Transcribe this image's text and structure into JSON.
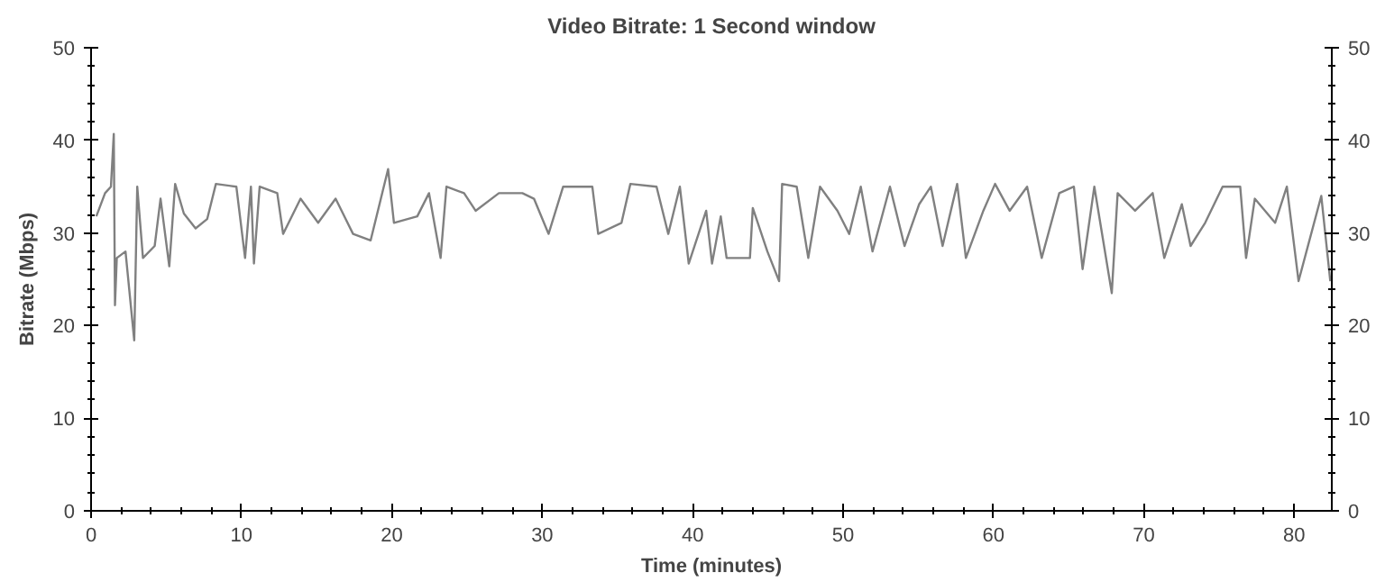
{
  "chart_data": {
    "type": "line",
    "title": "Video Bitrate: 1 Second window",
    "xlabel": "Time (minutes)",
    "ylabel": "Bitrate (Mbps)",
    "xlim": [
      0,
      82.5
    ],
    "xticks": [
      0,
      10,
      20,
      30,
      40,
      50,
      60,
      70,
      80
    ],
    "ylim": [
      0,
      50
    ],
    "yticks": [
      0,
      10,
      20,
      30,
      40,
      50
    ],
    "y2lim": [
      0,
      50
    ],
    "y2ticks": [
      0,
      10,
      20,
      30,
      40,
      50
    ],
    "grid": false,
    "marker": "none",
    "line_style": "solid",
    "series": [
      {
        "color": "#808080",
        "x": [
          0.35,
          0.93,
          1.32,
          1.51,
          1.59,
          1.71,
          2.29,
          2.87,
          3.07,
          3.45,
          4.23,
          4.62,
          5.2,
          5.59,
          6.17,
          6.95,
          7.72,
          8.3,
          9.66,
          10.24,
          10.63,
          10.83,
          11.21,
          12.38,
          12.77,
          13.93,
          15.1,
          16.26,
          17.42,
          18.59,
          19.75,
          20.14,
          21.69,
          22.47,
          23.24,
          23.63,
          24.8,
          25.57,
          27.12,
          28.68,
          29.45,
          30.42,
          31.39,
          33.33,
          33.72,
          35.27,
          35.86,
          37.6,
          38.38,
          39.15,
          39.74,
          40.9,
          41.29,
          41.87,
          42.26,
          43.81,
          44.0,
          44.97,
          45.75,
          45.95,
          46.92,
          47.69,
          48.47,
          49.63,
          50.41,
          51.18,
          51.96,
          53.12,
          54.09,
          55.06,
          55.84,
          56.62,
          57.59,
          58.17,
          59.33,
          60.11,
          61.08,
          62.24,
          63.21,
          64.38,
          65.35,
          65.93,
          66.71,
          67.87,
          68.26,
          69.42,
          70.59,
          71.36,
          72.53,
          73.11,
          74.08,
          75.24,
          76.41,
          76.8,
          77.38,
          78.73,
          79.51,
          80.29,
          81.8,
          82.4
        ],
        "values": [
          31.8,
          34.3,
          35.0,
          40.7,
          22.2,
          27.3,
          28.0,
          18.4,
          35.0,
          27.3,
          28.6,
          33.7,
          26.4,
          35.3,
          32.1,
          30.5,
          31.5,
          35.3,
          35.0,
          27.3,
          35.0,
          26.7,
          35.0,
          34.3,
          29.9,
          33.7,
          31.1,
          33.7,
          29.9,
          29.2,
          36.9,
          31.1,
          31.8,
          34.3,
          27.3,
          35.0,
          34.3,
          32.4,
          34.3,
          34.3,
          33.7,
          29.9,
          35.0,
          35.0,
          29.9,
          31.1,
          35.3,
          35.0,
          29.9,
          35.0,
          26.7,
          32.4,
          26.7,
          31.8,
          27.3,
          27.3,
          32.7,
          28.0,
          24.8,
          35.3,
          35.0,
          27.3,
          35.0,
          32.4,
          29.9,
          35.0,
          28.0,
          35.0,
          28.6,
          33.1,
          35.0,
          28.6,
          35.3,
          27.3,
          32.4,
          35.3,
          32.4,
          35.0,
          27.3,
          34.3,
          35.0,
          26.1,
          35.0,
          23.5,
          34.3,
          32.4,
          34.3,
          27.3,
          33.1,
          28.6,
          31.1,
          35.0,
          35.0,
          27.3,
          33.7,
          31.1,
          35.0,
          24.8,
          34.0,
          24.8
        ]
      }
    ]
  }
}
